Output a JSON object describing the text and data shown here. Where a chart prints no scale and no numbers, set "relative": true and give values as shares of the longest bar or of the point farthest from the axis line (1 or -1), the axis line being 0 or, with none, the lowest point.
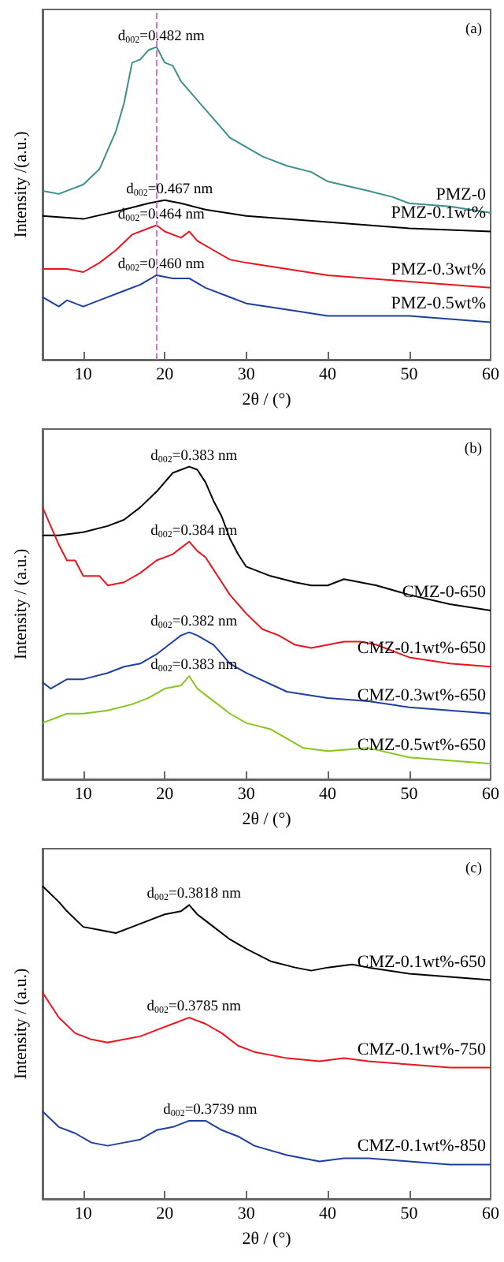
{
  "chart_data": [
    {
      "type": "line",
      "relative": true,
      "xlabel": "2θ / (°)",
      "ylabel": "Intensity /(a.u.)",
      "xlim": [
        5,
        60
      ],
      "xticks": [
        10,
        20,
        30,
        40,
        50,
        60
      ],
      "tick_labels": "x",
      "grid": false,
      "marker": "none",
      "line_style": "solid",
      "annotations": [
        "(a)",
        {
          "text": "d$_{002}$=0.482 nm",
          "x": 19,
          "y": 1.0
        },
        {
          "text": "d$_{002}$=0.467 nm",
          "x": 20,
          "y": 0.51
        },
        {
          "text": "d$_{002}$=0.464 nm",
          "x": 19,
          "y": 0.43
        },
        {
          "text": "d$_{002}$=0.460 nm",
          "x": 19,
          "y": 0.27
        }
      ],
      "ref_lines": [
        {
          "axis": "x",
          "value": 19,
          "color": "#d070d0",
          "line_style": "dashed"
        }
      ],
      "series": [
        {
          "name": "PMZ-0",
          "color": "#3d8f8f",
          "x": [
            5,
            7,
            8,
            10,
            12,
            13,
            14,
            15,
            16,
            17,
            18,
            19,
            20,
            21,
            22,
            23,
            25,
            27,
            28,
            30,
            32,
            35,
            38,
            40,
            45,
            48,
            50,
            55,
            60
          ],
          "values": [
            0.54,
            0.53,
            0.54,
            0.56,
            0.61,
            0.67,
            0.73,
            0.82,
            0.95,
            0.96,
            0.99,
            1.0,
            0.95,
            0.94,
            0.89,
            0.86,
            0.8,
            0.74,
            0.71,
            0.68,
            0.65,
            0.62,
            0.6,
            0.57,
            0.54,
            0.52,
            0.5,
            0.49,
            0.47
          ]
        },
        {
          "name": "PMZ-0.1wt%",
          "color": "#000000",
          "x": [
            5,
            10,
            15,
            18,
            20,
            22,
            25,
            30,
            40,
            50,
            60
          ],
          "values": [
            0.46,
            0.45,
            0.48,
            0.5,
            0.51,
            0.5,
            0.48,
            0.46,
            0.44,
            0.42,
            0.41
          ]
        },
        {
          "name": "PMZ-0.3wt%",
          "color": "#e8141e",
          "x": [
            5,
            8,
            10,
            12,
            14,
            16,
            18,
            19,
            20,
            22,
            23,
            24,
            26,
            28,
            30,
            35,
            40,
            50,
            60
          ],
          "values": [
            0.29,
            0.29,
            0.28,
            0.31,
            0.35,
            0.4,
            0.42,
            0.43,
            0.41,
            0.39,
            0.41,
            0.38,
            0.35,
            0.32,
            0.31,
            0.29,
            0.27,
            0.25,
            0.23
          ]
        },
        {
          "name": "PMZ-0.5wt%",
          "color": "#1f3f9f",
          "x": [
            5,
            7,
            8,
            10,
            12,
            15,
            17,
            19,
            21,
            23,
            25,
            28,
            30,
            35,
            40,
            50,
            60
          ],
          "values": [
            0.2,
            0.17,
            0.19,
            0.17,
            0.19,
            0.22,
            0.24,
            0.27,
            0.26,
            0.26,
            0.23,
            0.2,
            0.18,
            0.16,
            0.14,
            0.14,
            0.12
          ]
        }
      ]
    },
    {
      "type": "line",
      "relative": true,
      "xlabel": "2θ / (°)",
      "ylabel": "Intensity / (a.u.)",
      "xlim": [
        5,
        60
      ],
      "xticks": [
        10,
        20,
        30,
        40,
        50,
        60
      ],
      "tick_labels": "x",
      "grid": false,
      "marker": "none",
      "line_style": "solid",
      "annotations": [
        "(b)",
        {
          "text": "d$_{002}$=0.383 nm",
          "x": 23,
          "y": 1.0
        },
        {
          "text": "d$_{002}$=0.384 nm",
          "x": 23,
          "y": 0.76
        },
        {
          "text": "d$_{002}$=0.382 nm",
          "x": 23,
          "y": 0.47
        },
        {
          "text": "d$_{002}$=0.383 nm",
          "x": 23,
          "y": 0.33
        }
      ],
      "series": [
        {
          "name": "CMZ-0-650",
          "color": "#000000",
          "x": [
            5,
            7,
            10,
            13,
            15,
            17,
            19,
            21,
            23,
            24,
            25,
            26,
            27,
            28,
            29,
            30,
            33,
            36,
            38,
            40,
            42,
            44,
            46,
            50,
            55,
            60
          ],
          "values": [
            0.78,
            0.78,
            0.79,
            0.81,
            0.83,
            0.87,
            0.92,
            0.98,
            1.0,
            0.99,
            0.95,
            0.89,
            0.84,
            0.77,
            0.72,
            0.68,
            0.65,
            0.63,
            0.62,
            0.62,
            0.64,
            0.63,
            0.62,
            0.59,
            0.56,
            0.54
          ]
        },
        {
          "name": "CMZ-0.1wt%-650",
          "color": "#e8141e",
          "x": [
            5,
            6,
            7,
            8,
            9,
            10,
            12,
            13,
            15,
            17,
            19,
            21,
            22,
            23,
            24,
            25,
            26,
            27,
            28,
            29,
            30,
            32,
            34,
            36,
            38,
            40,
            42,
            44,
            46,
            50,
            55,
            60
          ],
          "values": [
            0.87,
            0.81,
            0.75,
            0.7,
            0.7,
            0.65,
            0.65,
            0.62,
            0.63,
            0.66,
            0.7,
            0.72,
            0.74,
            0.76,
            0.73,
            0.71,
            0.67,
            0.63,
            0.59,
            0.56,
            0.53,
            0.48,
            0.46,
            0.43,
            0.42,
            0.43,
            0.44,
            0.44,
            0.43,
            0.39,
            0.37,
            0.36
          ]
        },
        {
          "name": "CMZ-0.3wt%-650",
          "color": "#1f3f9f",
          "x": [
            5,
            6,
            8,
            10,
            13,
            15,
            17,
            19,
            21,
            22,
            23,
            24,
            26,
            27,
            28,
            30,
            35,
            40,
            45,
            50,
            55,
            60
          ],
          "values": [
            0.31,
            0.29,
            0.32,
            0.32,
            0.34,
            0.36,
            0.37,
            0.4,
            0.44,
            0.46,
            0.47,
            0.46,
            0.43,
            0.4,
            0.37,
            0.34,
            0.28,
            0.26,
            0.25,
            0.23,
            0.22,
            0.21
          ]
        },
        {
          "name": "CMZ-0.5wt%-650",
          "color": "#86c41e",
          "x": [
            5,
            8,
            10,
            13,
            16,
            18,
            20,
            22,
            23,
            24,
            26,
            28,
            30,
            33,
            35,
            37,
            40,
            45,
            50,
            55,
            60
          ],
          "values": [
            0.18,
            0.21,
            0.21,
            0.22,
            0.24,
            0.26,
            0.29,
            0.3,
            0.33,
            0.29,
            0.25,
            0.21,
            0.18,
            0.16,
            0.13,
            0.1,
            0.09,
            0.1,
            0.07,
            0.06,
            0.05
          ]
        }
      ]
    },
    {
      "type": "line",
      "relative": true,
      "xlabel": "2θ / (°)",
      "ylabel": "Intensity / (a.u.)",
      "xlim": [
        5,
        60
      ],
      "xticks": [
        10,
        20,
        30,
        40,
        50,
        60
      ],
      "tick_labels": "x",
      "grid": false,
      "marker": "none",
      "line_style": "solid",
      "annotations": [
        "(c)",
        {
          "text": "d$_{002}$=0.3818 nm",
          "x": 23,
          "y": 0.94
        },
        {
          "text": "d$_{002}$=0.3785 nm",
          "x": 23,
          "y": 0.58
        },
        {
          "text": "d$_{002}$=0.3739 nm",
          "x": 25,
          "y": 0.25
        }
      ],
      "series": [
        {
          "name": "CMZ-0.1wt%-650",
          "color": "#000000",
          "x": [
            5,
            7,
            8,
            10,
            12,
            14,
            16,
            18,
            20,
            22,
            23,
            24,
            26,
            28,
            30,
            33,
            36,
            38,
            40,
            43,
            45,
            50,
            55,
            60
          ],
          "values": [
            1.0,
            0.95,
            0.92,
            0.87,
            0.86,
            0.85,
            0.87,
            0.89,
            0.91,
            0.92,
            0.94,
            0.91,
            0.87,
            0.83,
            0.8,
            0.76,
            0.74,
            0.73,
            0.74,
            0.75,
            0.74,
            0.72,
            0.71,
            0.7
          ]
        },
        {
          "name": "CMZ-0.1wt%-750",
          "color": "#e8141e",
          "x": [
            5,
            7,
            9,
            11,
            13,
            15,
            17,
            19,
            21,
            23,
            25,
            27,
            29,
            31,
            35,
            39,
            42,
            45,
            50,
            55,
            60
          ],
          "values": [
            0.66,
            0.58,
            0.53,
            0.51,
            0.5,
            0.51,
            0.52,
            0.54,
            0.56,
            0.58,
            0.56,
            0.53,
            0.49,
            0.47,
            0.45,
            0.44,
            0.45,
            0.44,
            0.43,
            0.42,
            0.42
          ]
        },
        {
          "name": "CMZ-0.1wt%-850",
          "color": "#1f3f9f",
          "x": [
            5,
            7,
            9,
            11,
            13,
            15,
            17,
            19,
            21,
            23,
            25,
            27,
            29,
            31,
            35,
            39,
            42,
            45,
            50,
            55,
            60
          ],
          "values": [
            0.28,
            0.23,
            0.21,
            0.18,
            0.17,
            0.18,
            0.19,
            0.22,
            0.23,
            0.25,
            0.25,
            0.22,
            0.2,
            0.17,
            0.14,
            0.12,
            0.13,
            0.13,
            0.12,
            0.11,
            0.11
          ]
        }
      ]
    }
  ]
}
